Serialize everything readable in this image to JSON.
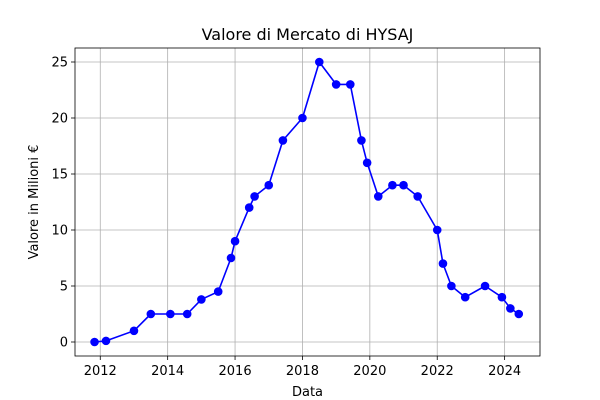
{
  "chart_data": {
    "type": "line",
    "title": "Valore di Mercato di HYSAJ",
    "xlabel": "Data",
    "ylabel": "Valore in Milioni €",
    "xlim": [
      2011.25,
      2025.05
    ],
    "ylim": [
      -1.25,
      26.25
    ],
    "xticks": [
      2012,
      2014,
      2016,
      2018,
      2020,
      2022,
      2024
    ],
    "yticks": [
      0,
      5,
      10,
      15,
      20,
      25
    ],
    "grid": true,
    "color": "#0000ff",
    "series": [
      {
        "x": [
          2011.83,
          2012.17,
          2013.0,
          2013.5,
          2014.08,
          2014.58,
          2015.0,
          2015.5,
          2015.88,
          2016.0,
          2016.42,
          2016.58,
          2017.0,
          2017.42,
          2018.0,
          2018.5,
          2019.0,
          2019.42,
          2019.75,
          2019.92,
          2020.25,
          2020.67,
          2021.0,
          2021.42,
          2022.0,
          2022.17,
          2022.42,
          2022.83,
          2023.42,
          2023.92,
          2024.17,
          2024.42
        ],
        "y": [
          0.0,
          0.1,
          1.0,
          2.5,
          2.5,
          2.5,
          3.8,
          4.5,
          7.5,
          9.0,
          12.0,
          13.0,
          14.0,
          18.0,
          20.0,
          25.0,
          23.0,
          23.0,
          18.0,
          16.0,
          13.0,
          14.0,
          14.0,
          13.0,
          10.0,
          7.0,
          5.0,
          4.0,
          5.0,
          4.0,
          3.0,
          2.5
        ]
      }
    ]
  }
}
